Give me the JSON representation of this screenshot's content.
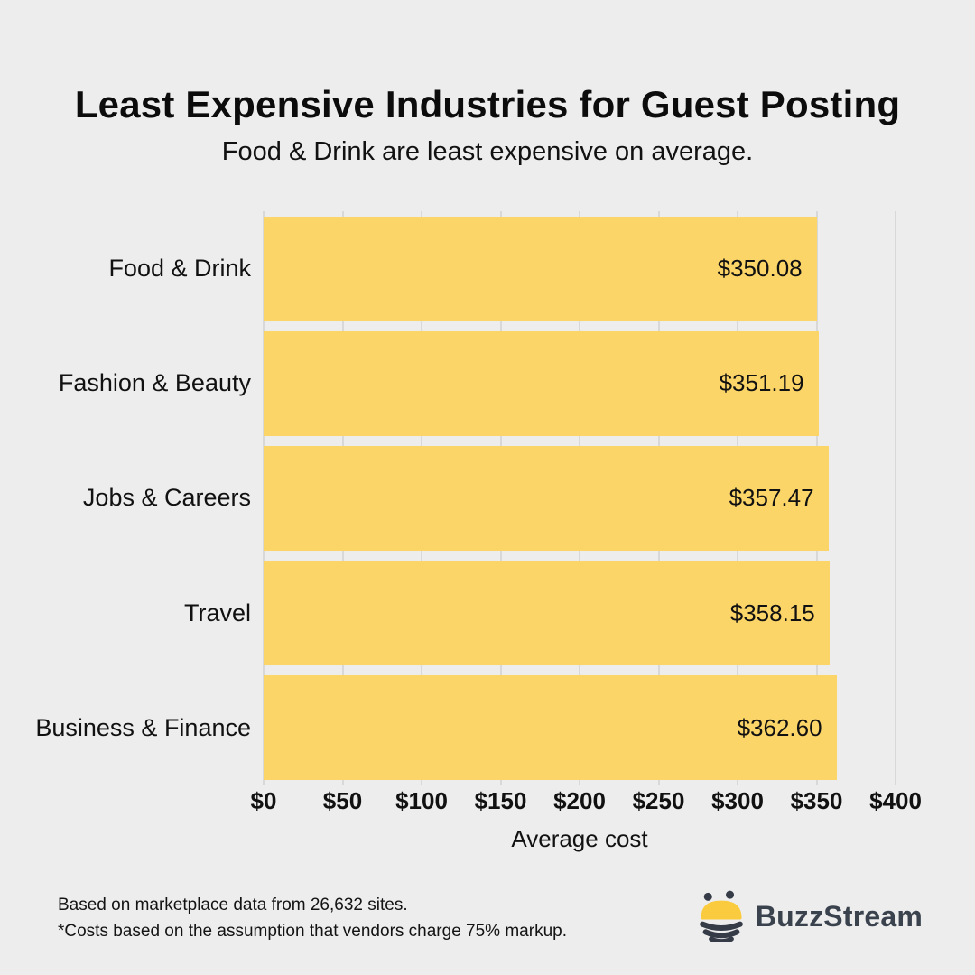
{
  "title": "Least Expensive Industries for Guest Posting",
  "subtitle": "Food & Drink are least expensive on average.",
  "chart_data": {
    "type": "bar",
    "orientation": "horizontal",
    "categories": [
      "Food & Drink",
      "Fashion & Beauty",
      "Jobs & Careers",
      "Travel",
      "Business & Finance"
    ],
    "values": [
      350.08,
      351.19,
      357.47,
      358.15,
      362.6
    ],
    "value_labels": [
      "$350.08",
      "$351.19",
      "$357.47",
      "$358.15",
      "$362.60"
    ],
    "title": "Least Expensive Industries for Guest Posting",
    "subtitle": "Food & Drink are least expensive on average.",
    "xlabel": "Average cost",
    "ylabel": "",
    "xlim": [
      0,
      400
    ],
    "x_tick_values": [
      0,
      50,
      100,
      150,
      200,
      250,
      300,
      350,
      400
    ],
    "x_tick_labels": [
      "$0",
      "$50",
      "$100",
      "$150",
      "$200",
      "$250",
      "$300",
      "$350",
      "$400"
    ],
    "grid": "vertical gridlines at each tick",
    "legend": "none",
    "bar_color": "#FCD569",
    "background_color": "#EDEDED",
    "gridline_color": "#D8D8D8"
  },
  "footer": {
    "line1": "Based on marketplace data from 26,632 sites.",
    "line2": "*Costs based on the assumption that vendors charge 75% markup."
  },
  "logo": {
    "text": "BuzzStream",
    "icon": "bee-icon",
    "text_color": "#3A424E",
    "icon_yellow": "#FBCB3F",
    "icon_dark": "#353C48"
  }
}
